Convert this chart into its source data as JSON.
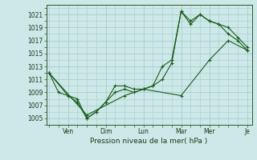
{
  "xlabel": "Pression niveau de la mer( hPa )",
  "bg_color": "#cce8e8",
  "grid_color": "#aacccc",
  "line_color": "#1a5c1a",
  "ylim": [
    1004,
    1022.5
  ],
  "yticks": [
    1005,
    1007,
    1009,
    1011,
    1013,
    1015,
    1017,
    1019,
    1021
  ],
  "xlim": [
    -0.3,
    21.5
  ],
  "day_labels_at": [
    2,
    6,
    10,
    14,
    17,
    21
  ],
  "day_label_names": [
    "Ven",
    "Dim",
    "Lun",
    "Mar",
    "Mer",
    "Je"
  ],
  "series1_x": [
    0,
    1,
    2,
    3,
    4,
    5,
    6,
    7,
    8,
    9,
    10,
    11,
    12,
    13,
    14,
    15,
    16,
    17,
    18,
    19,
    20,
    21
  ],
  "series1_y": [
    1012,
    1009,
    1008.5,
    1007.5,
    1005,
    1006,
    1007.5,
    1010,
    1010,
    1009.5,
    1009.5,
    1010,
    1013,
    1014,
    1021.5,
    1020,
    1021,
    1020,
    1019.5,
    1018,
    1017,
    1015.5
  ],
  "series2_x": [
    0,
    2,
    3,
    4,
    5,
    6,
    7,
    8,
    9,
    10,
    11,
    12,
    13,
    14,
    15,
    16,
    17,
    18,
    19,
    20,
    21
  ],
  "series2_y": [
    1012,
    1008.5,
    1008,
    1005,
    1006,
    1007.5,
    1009,
    1009.5,
    1009,
    1009.5,
    1010,
    1011,
    1013.5,
    1021.5,
    1019.5,
    1021,
    1020,
    1019.5,
    1019,
    1017.5,
    1016
  ],
  "series3_x": [
    0,
    4,
    8,
    10,
    14,
    17,
    19,
    21
  ],
  "series3_y": [
    1012,
    1005.5,
    1008.5,
    1009.5,
    1008.5,
    1014,
    1017,
    1015.5
  ]
}
